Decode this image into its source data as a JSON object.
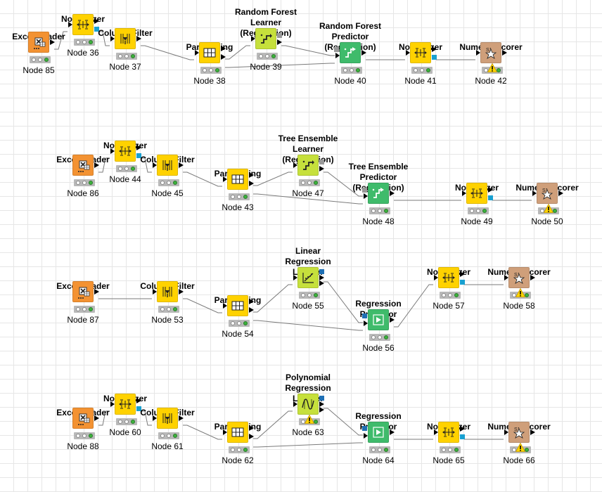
{
  "workflow": {
    "rows": [
      {
        "nodes": [
          {
            "id": "n85",
            "title": "Excel Reader",
            "label": "Node 85",
            "type": "excel",
            "color": "#f39232",
            "warning": false
          },
          {
            "id": "n36",
            "title": "Normalizer",
            "label": "Node 36",
            "type": "normalizer",
            "color": "#ffd200",
            "warning": false
          },
          {
            "id": "n37",
            "title": "Column Filter",
            "label": "Node 37",
            "type": "colfilter",
            "color": "#ffd200",
            "warning": false
          },
          {
            "id": "n38",
            "title": "Partitioning",
            "label": "Node 38",
            "type": "partition",
            "color": "#ffd200",
            "warning": false
          },
          {
            "id": "n39",
            "title": "Random Forest Learner\n(Regression)",
            "label": "Node 39",
            "type": "learner",
            "color": "#c6e03c",
            "warning": false
          },
          {
            "id": "n40",
            "title": "Random Forest Predictor\n(Regression)",
            "label": "Node 40",
            "type": "predictor",
            "color": "#3fbb6b",
            "warning": false
          },
          {
            "id": "n41",
            "title": "Normalizer",
            "label": "Node 41",
            "type": "normalizer",
            "color": "#ffd200",
            "warning": false
          },
          {
            "id": "n42",
            "title": "Numeric Scorer",
            "label": "Node 42",
            "type": "scorer",
            "color": "#cf9f7a",
            "warning": true
          }
        ]
      },
      {
        "nodes": [
          {
            "id": "n86",
            "title": "Excel Reader",
            "label": "Node 86",
            "type": "excel",
            "color": "#f39232",
            "warning": false
          },
          {
            "id": "n44",
            "title": "Normalizer",
            "label": "Node 44",
            "type": "normalizer",
            "color": "#ffd200",
            "warning": false
          },
          {
            "id": "n45",
            "title": "Column Filter",
            "label": "Node 45",
            "type": "colfilter",
            "color": "#ffd200",
            "warning": false
          },
          {
            "id": "n43",
            "title": "Partitioning",
            "label": "Node 43",
            "type": "partition",
            "color": "#ffd200",
            "warning": false
          },
          {
            "id": "n47",
            "title": "Tree Ensemble Learner\n(Regression)",
            "label": "Node 47",
            "type": "learner",
            "color": "#c6e03c",
            "warning": false
          },
          {
            "id": "n48",
            "title": "Tree Ensemble Predictor\n(Regression)",
            "label": "Node 48",
            "type": "predictor",
            "color": "#3fbb6b",
            "warning": false
          },
          {
            "id": "n49",
            "title": "Normalizer",
            "label": "Node 49",
            "type": "normalizer",
            "color": "#ffd200",
            "warning": false
          },
          {
            "id": "n50",
            "title": "Numeric Scorer",
            "label": "Node 50",
            "type": "scorer",
            "color": "#cf9f7a",
            "warning": true
          }
        ]
      },
      {
        "nodes": [
          {
            "id": "n87",
            "title": "Excel Reader",
            "label": "Node 87",
            "type": "excel",
            "color": "#f39232",
            "warning": false
          },
          {
            "id": "n53",
            "title": "Column Filter",
            "label": "Node 53",
            "type": "colfilter",
            "color": "#ffd200",
            "warning": false
          },
          {
            "id": "n54",
            "title": "Partitioning",
            "label": "Node 54",
            "type": "partition",
            "color": "#ffd200",
            "warning": false
          },
          {
            "id": "n55",
            "title": "Linear Regression\nLearner",
            "label": "Node 55",
            "type": "linreg",
            "color": "#c6e03c",
            "warning": false
          },
          {
            "id": "n56",
            "title": "Regression\nPredictor",
            "label": "Node 56",
            "type": "regpred",
            "color": "#3fbb6b",
            "warning": false
          },
          {
            "id": "n57",
            "title": "Normalizer",
            "label": "Node 57",
            "type": "normalizer",
            "color": "#ffd200",
            "warning": false
          },
          {
            "id": "n58",
            "title": "Numeric Scorer",
            "label": "Node 58",
            "type": "scorer",
            "color": "#cf9f7a",
            "warning": true
          }
        ]
      },
      {
        "nodes": [
          {
            "id": "n88",
            "title": "Excel Reader",
            "label": "Node 88",
            "type": "excel",
            "color": "#f39232",
            "warning": false
          },
          {
            "id": "n60",
            "title": "Normalizer",
            "label": "Node 60",
            "type": "normalizer",
            "color": "#ffd200",
            "warning": false
          },
          {
            "id": "n61",
            "title": "Column Filter",
            "label": "Node 61",
            "type": "colfilter",
            "color": "#ffd200",
            "warning": false
          },
          {
            "id": "n62",
            "title": "Partitioning",
            "label": "Node 62",
            "type": "partition",
            "color": "#ffd200",
            "warning": false
          },
          {
            "id": "n63",
            "title": "Polynomial\nRegression Learner",
            "label": "Node 63",
            "type": "polyreg",
            "color": "#c6e03c",
            "warning": true
          },
          {
            "id": "n64",
            "title": "Regression\nPredictor",
            "label": "Node 64",
            "type": "regpred",
            "color": "#3fbb6b",
            "warning": false
          },
          {
            "id": "n65",
            "title": "Normalizer",
            "label": "Node 65",
            "type": "normalizer",
            "color": "#ffd200",
            "warning": false
          },
          {
            "id": "n66",
            "title": "Numeric Scorer",
            "label": "Node 66",
            "type": "scorer",
            "color": "#cf9f7a",
            "warning": true
          }
        ]
      }
    ],
    "connections": [
      [
        "n85",
        "n36"
      ],
      [
        "n36",
        "n37"
      ],
      [
        "n37",
        "n38"
      ],
      [
        "n38",
        "n39"
      ],
      [
        "n38",
        "n40"
      ],
      [
        "n39",
        "n40"
      ],
      [
        "n40",
        "n41"
      ],
      [
        "n41",
        "n42"
      ],
      [
        "n86",
        "n44"
      ],
      [
        "n44",
        "n45"
      ],
      [
        "n45",
        "n43"
      ],
      [
        "n43",
        "n47"
      ],
      [
        "n43",
        "n48"
      ],
      [
        "n47",
        "n48"
      ],
      [
        "n48",
        "n49"
      ],
      [
        "n49",
        "n50"
      ],
      [
        "n87",
        "n53"
      ],
      [
        "n53",
        "n54"
      ],
      [
        "n54",
        "n55"
      ],
      [
        "n54",
        "n56"
      ],
      [
        "n55",
        "n56"
      ],
      [
        "n56",
        "n57"
      ],
      [
        "n57",
        "n58"
      ],
      [
        "n88",
        "n60"
      ],
      [
        "n60",
        "n61"
      ],
      [
        "n61",
        "n62"
      ],
      [
        "n62",
        "n63"
      ],
      [
        "n62",
        "n64"
      ],
      [
        "n63",
        "n64"
      ],
      [
        "n64",
        "n65"
      ],
      [
        "n65",
        "n66"
      ]
    ],
    "port_colors": {
      "data": "#000000",
      "model": "#999999",
      "pmml": "#1e6fb4",
      "view": "#18a0d0"
    }
  }
}
